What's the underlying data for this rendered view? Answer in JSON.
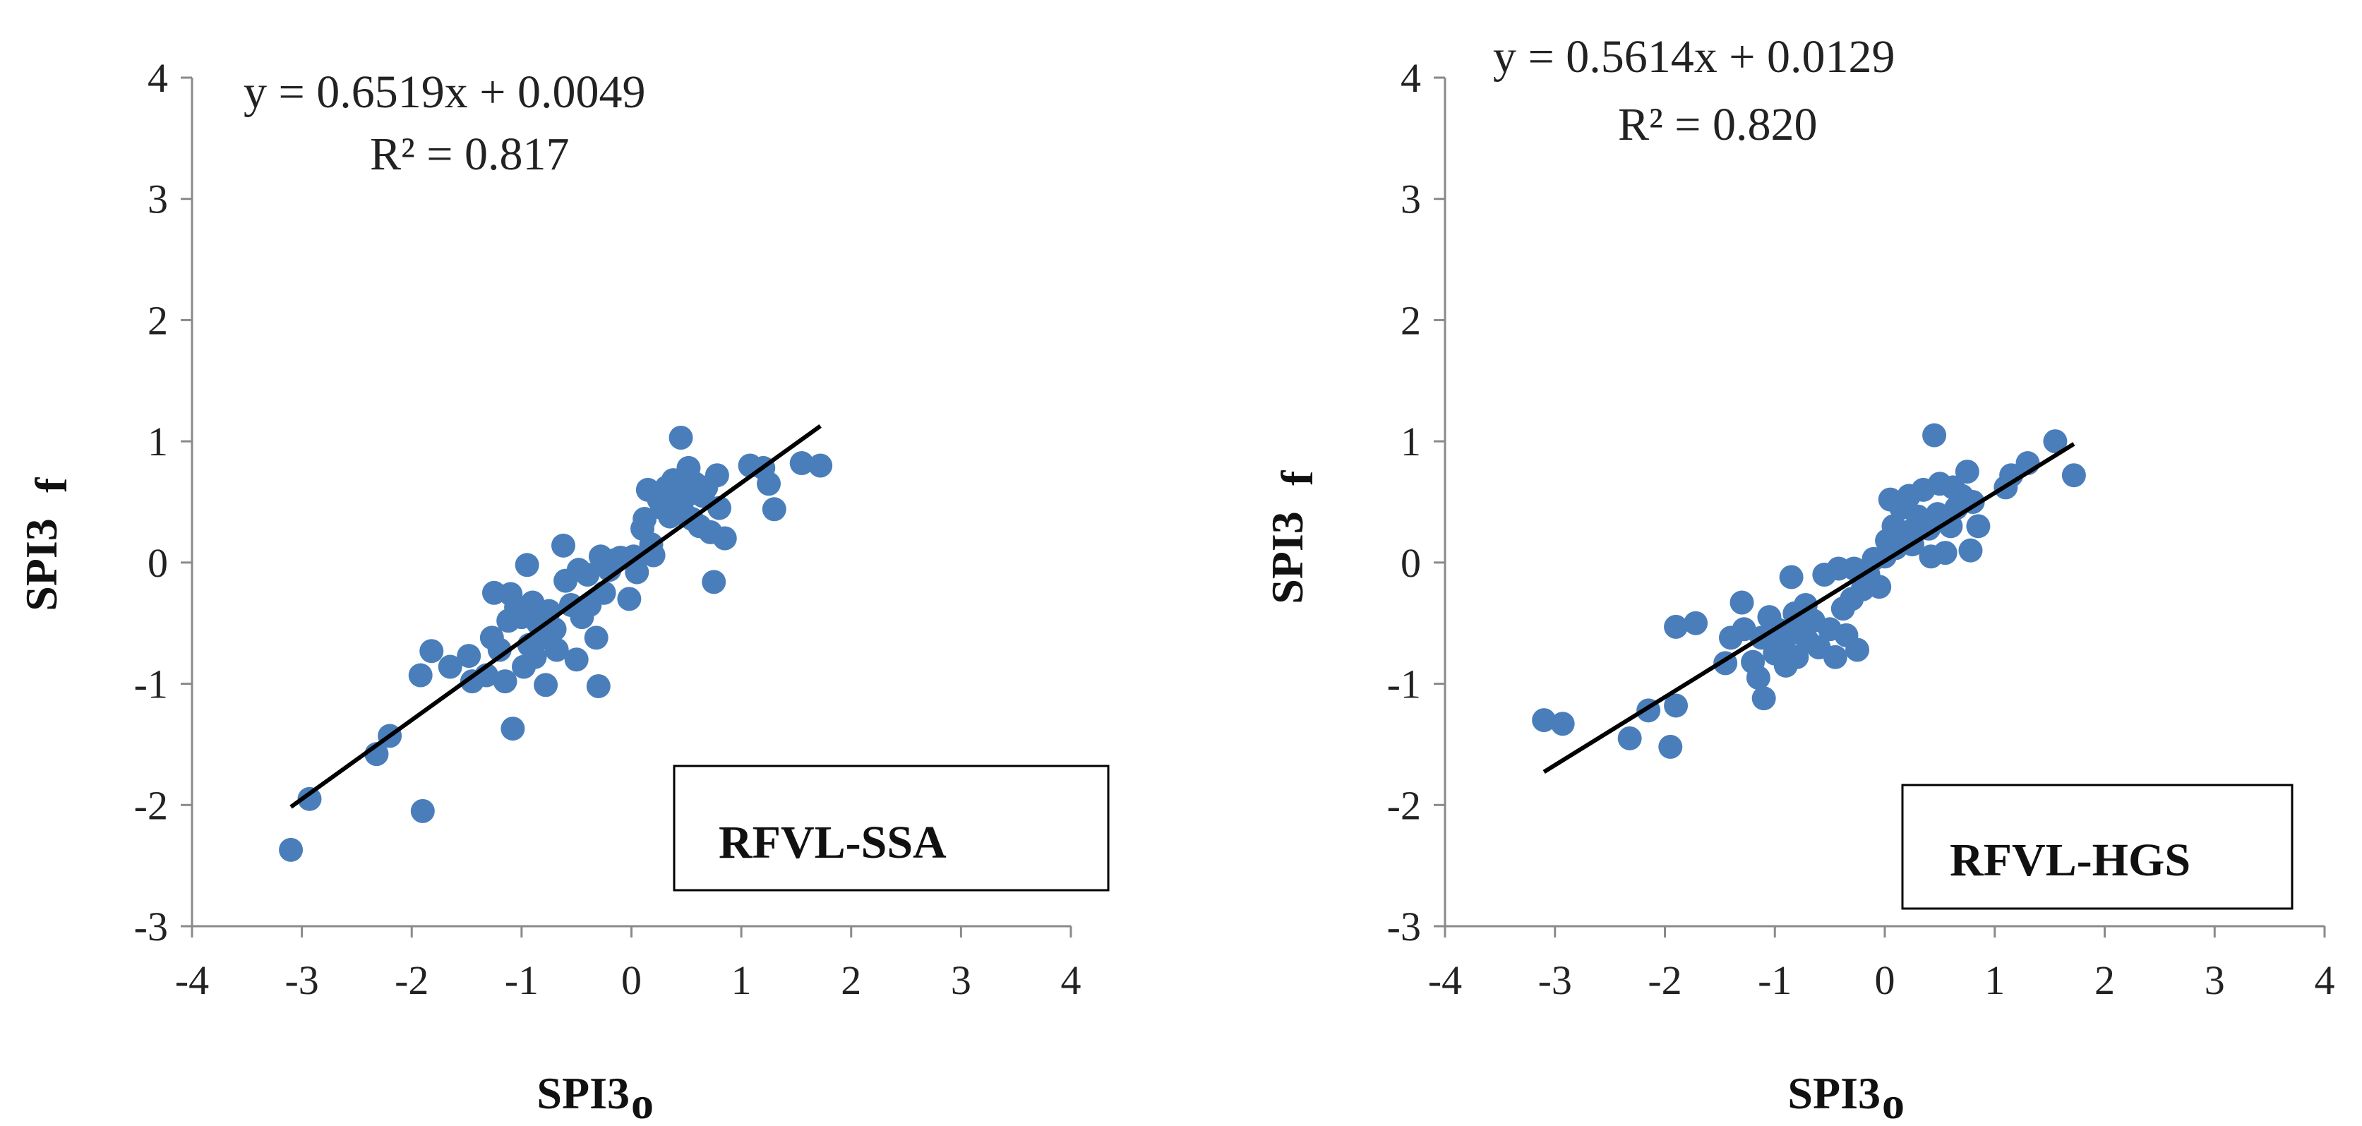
{
  "chart_data": [
    {
      "type": "scatter",
      "xlim": [
        -4,
        4
      ],
      "ylim": [
        -3,
        4
      ],
      "xticks": [
        "-4",
        "-3",
        "-2",
        "-1",
        "0",
        "1",
        "2",
        "3",
        "4"
      ],
      "yticks": [
        "-3",
        "-2",
        "-1",
        "0",
        "1",
        "2",
        "3",
        "4"
      ],
      "xlabel": "SPI3",
      "xlabel_sub": "o",
      "ylabel": "SPI3",
      "ylabel_sub": "f",
      "equation": "y = 0.6519x + 0.0049",
      "r2": "R² = 0.817",
      "box_label": "RFVL-SSA",
      "color": "#4a7ebb",
      "trend": {
        "slope": 0.6519,
        "intercept": 0.0049,
        "x_range": [
          -3.1,
          1.72
        ]
      },
      "points": [
        [
          -3.1,
          -2.37
        ],
        [
          -2.93,
          -1.95
        ],
        [
          -2.32,
          -1.58
        ],
        [
          -2.2,
          -1.43
        ],
        [
          -1.9,
          -2.05
        ],
        [
          -1.92,
          -0.93
        ],
        [
          -1.82,
          -0.73
        ],
        [
          -1.65,
          -0.86
        ],
        [
          -1.48,
          -0.77
        ],
        [
          -1.45,
          -0.98
        ],
        [
          -1.32,
          -0.93
        ],
        [
          -1.27,
          -0.62
        ],
        [
          -1.25,
          -0.25
        ],
        [
          -1.2,
          -0.72
        ],
        [
          -1.15,
          -0.98
        ],
        [
          -1.12,
          -0.48
        ],
        [
          -1.1,
          -0.26
        ],
        [
          -1.08,
          -1.37
        ],
        [
          -1.05,
          -0.37
        ],
        [
          -1.0,
          -0.45
        ],
        [
          -0.98,
          -0.86
        ],
        [
          -0.95,
          -0.02
        ],
        [
          -0.93,
          -0.68
        ],
        [
          -0.9,
          -0.33
        ],
        [
          -0.88,
          -0.78
        ],
        [
          -0.85,
          -0.5
        ],
        [
          -0.8,
          -0.62
        ],
        [
          -0.78,
          -1.01
        ],
        [
          -0.75,
          -0.4
        ],
        [
          -0.7,
          -0.55
        ],
        [
          -0.68,
          -0.72
        ],
        [
          -0.62,
          0.14
        ],
        [
          -0.6,
          -0.15
        ],
        [
          -0.55,
          -0.35
        ],
        [
          -0.5,
          -0.8
        ],
        [
          -0.48,
          -0.06
        ],
        [
          -0.45,
          -0.45
        ],
        [
          -0.4,
          -0.1
        ],
        [
          -0.38,
          -0.35
        ],
        [
          -0.32,
          -0.62
        ],
        [
          -0.3,
          -1.02
        ],
        [
          -0.28,
          0.05
        ],
        [
          -0.25,
          -0.25
        ],
        [
          -0.2,
          -0.06
        ],
        [
          -0.15,
          0.02
        ],
        [
          -0.1,
          0.04
        ],
        [
          -0.02,
          -0.3
        ],
        [
          0.02,
          0.05
        ],
        [
          0.05,
          -0.08
        ],
        [
          0.1,
          0.28
        ],
        [
          0.12,
          0.36
        ],
        [
          0.15,
          0.6
        ],
        [
          0.18,
          0.15
        ],
        [
          0.2,
          0.06
        ],
        [
          0.25,
          0.52
        ],
        [
          0.28,
          0.45
        ],
        [
          0.32,
          0.62
        ],
        [
          0.35,
          0.38
        ],
        [
          0.38,
          0.68
        ],
        [
          0.42,
          0.48
        ],
        [
          0.45,
          1.03
        ],
        [
          0.48,
          0.4
        ],
        [
          0.5,
          0.55
        ],
        [
          0.52,
          0.78
        ],
        [
          0.55,
          0.36
        ],
        [
          0.58,
          0.65
        ],
        [
          0.62,
          0.3
        ],
        [
          0.65,
          0.55
        ],
        [
          0.68,
          0.62
        ],
        [
          0.72,
          0.25
        ],
        [
          0.75,
          -0.16
        ],
        [
          0.78,
          0.72
        ],
        [
          0.8,
          0.45
        ],
        [
          0.85,
          0.2
        ],
        [
          1.08,
          0.8
        ],
        [
          1.2,
          0.78
        ],
        [
          1.25,
          0.65
        ],
        [
          1.3,
          0.44
        ],
        [
          1.55,
          0.82
        ],
        [
          1.72,
          0.8
        ]
      ]
    },
    {
      "type": "scatter",
      "xlim": [
        -4,
        4
      ],
      "ylim": [
        -3,
        4
      ],
      "xticks": [
        "-4",
        "-3",
        "-2",
        "-1",
        "0",
        "1",
        "2",
        "3",
        "4"
      ],
      "yticks": [
        "-3",
        "-2",
        "-1",
        "0",
        "1",
        "2",
        "3",
        "4"
      ],
      "xlabel": "SPI3",
      "xlabel_sub": "o",
      "ylabel": "SPI3",
      "ylabel_sub": "f",
      "equation": "y = 0.5614x + 0.0129",
      "r2": "R² = 0.820",
      "box_label": "RFVL-HGS",
      "color": "#4a7ebb",
      "trend": {
        "slope": 0.5614,
        "intercept": 0.0129,
        "x_range": [
          -3.1,
          1.72
        ]
      },
      "points": [
        [
          -3.1,
          -1.3
        ],
        [
          -2.93,
          -1.33
        ],
        [
          -2.32,
          -1.45
        ],
        [
          -2.15,
          -1.22
        ],
        [
          -1.95,
          -1.52
        ],
        [
          -1.9,
          -1.18
        ],
        [
          -1.9,
          -0.53
        ],
        [
          -1.72,
          -0.5
        ],
        [
          -1.45,
          -0.83
        ],
        [
          -1.4,
          -0.62
        ],
        [
          -1.3,
          -0.33
        ],
        [
          -1.28,
          -0.55
        ],
        [
          -1.2,
          -0.82
        ],
        [
          -1.15,
          -0.95
        ],
        [
          -1.12,
          -0.62
        ],
        [
          -1.1,
          -1.12
        ],
        [
          -1.05,
          -0.45
        ],
        [
          -1.0,
          -0.75
        ],
        [
          -0.98,
          -0.55
        ],
        [
          -0.95,
          -0.68
        ],
        [
          -0.9,
          -0.85
        ],
        [
          -0.88,
          -0.6
        ],
        [
          -0.85,
          -0.12
        ],
        [
          -0.82,
          -0.42
        ],
        [
          -0.8,
          -0.78
        ],
        [
          -0.75,
          -0.52
        ],
        [
          -0.72,
          -0.35
        ],
        [
          -0.7,
          -0.65
        ],
        [
          -0.65,
          -0.48
        ],
        [
          -0.6,
          -0.7
        ],
        [
          -0.55,
          -0.1
        ],
        [
          -0.5,
          -0.55
        ],
        [
          -0.45,
          -0.78
        ],
        [
          -0.42,
          -0.05
        ],
        [
          -0.38,
          -0.38
        ],
        [
          -0.35,
          -0.6
        ],
        [
          -0.3,
          -0.3
        ],
        [
          -0.28,
          -0.05
        ],
        [
          -0.25,
          -0.72
        ],
        [
          -0.2,
          -0.22
        ],
        [
          -0.15,
          -0.1
        ],
        [
          -0.1,
          0.03
        ],
        [
          -0.05,
          -0.2
        ],
        [
          0.0,
          0.05
        ],
        [
          0.02,
          0.18
        ],
        [
          0.05,
          0.52
        ],
        [
          0.08,
          0.3
        ],
        [
          0.1,
          0.12
        ],
        [
          0.15,
          0.45
        ],
        [
          0.2,
          0.25
        ],
        [
          0.22,
          0.55
        ],
        [
          0.25,
          0.15
        ],
        [
          0.3,
          0.38
        ],
        [
          0.35,
          0.6
        ],
        [
          0.4,
          0.28
        ],
        [
          0.42,
          0.05
        ],
        [
          0.45,
          1.05
        ],
        [
          0.48,
          0.4
        ],
        [
          0.5,
          0.65
        ],
        [
          0.55,
          0.08
        ],
        [
          0.6,
          0.3
        ],
        [
          0.62,
          0.62
        ],
        [
          0.65,
          0.45
        ],
        [
          0.7,
          0.55
        ],
        [
          0.75,
          0.75
        ],
        [
          0.78,
          0.1
        ],
        [
          0.8,
          0.5
        ],
        [
          0.85,
          0.3
        ],
        [
          1.1,
          0.62
        ],
        [
          1.15,
          0.72
        ],
        [
          1.3,
          0.82
        ],
        [
          1.55,
          1.0
        ],
        [
          1.72,
          0.72
        ]
      ]
    }
  ]
}
